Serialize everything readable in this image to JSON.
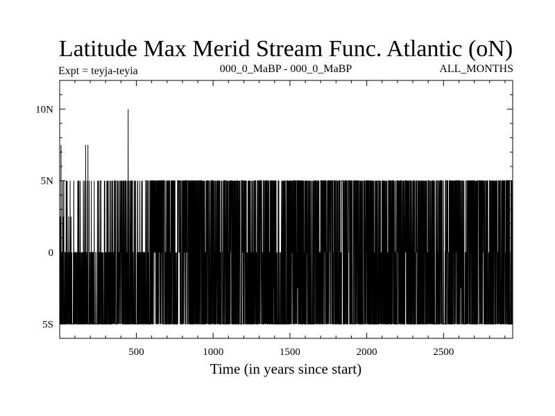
{
  "chart_data": {
    "type": "line",
    "title": "Latitude Max Merid Stream Func. Atlantic (oN)",
    "subtitle_left": "Expt = teyja-teyia",
    "subtitle_center": "000_0_MaBP - 000_0_MaBP",
    "subtitle_right": "ALL_MONTHS",
    "xlabel": "Time (in years since start)",
    "ylabel": "",
    "xlim": [
      1,
      2950
    ],
    "ylim": [
      -6,
      12
    ],
    "xticks": [
      {
        "value": 500,
        "label": "500"
      },
      {
        "value": 1000,
        "label": "1000"
      },
      {
        "value": 1500,
        "label": "1500"
      },
      {
        "value": 2000,
        "label": "2000"
      },
      {
        "value": 2500,
        "label": "2500"
      }
    ],
    "yticks": [
      {
        "value": -5,
        "label": "5S"
      },
      {
        "value": 0,
        "label": "0"
      },
      {
        "value": 5,
        "label": "5N"
      },
      {
        "value": 10,
        "label": "10N"
      }
    ],
    "levels": [
      -5,
      -2.5,
      0,
      2.5,
      5,
      7.5,
      10
    ],
    "series": [
      {
        "name": "Latitude of max Atlantic meridional stream function",
        "description": "Annual series, 1 to 2950 years; switches rapidly between 5S, 0 and 5N with occasional spikes to 2.5N, 7.5N and 10N",
        "x_start": 1,
        "x_end": 2950,
        "peak": {
          "x": 447,
          "y": 10
        },
        "spikes_7_5N": [
          10,
          170,
          185
        ],
        "spikes_2_5N": [
          5,
          25,
          60,
          75
        ]
      }
    ]
  }
}
